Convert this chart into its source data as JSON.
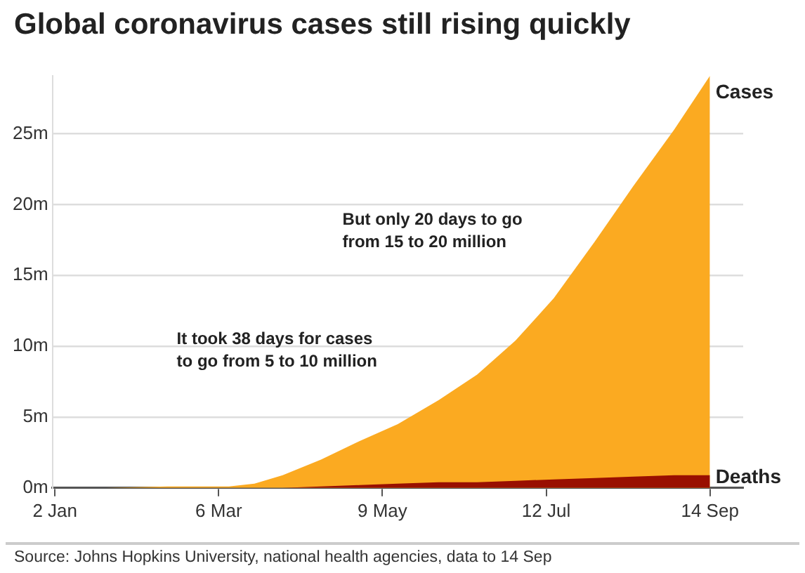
{
  "chart_data": {
    "type": "area",
    "title": "Global coronavirus cases still rising quickly",
    "x": [
      "--01-22",
      "--02-15",
      "--03-01",
      "--03-10",
      "--03-20",
      "--03-31",
      "--04-15",
      "--04-30",
      "--05-15",
      "--05-31",
      "--06-15",
      "--06-30",
      "--07-15",
      "--07-31",
      "--08-15",
      "--08-31",
      "--09-14"
    ],
    "series": [
      {
        "name": "Cases",
        "color": "#fbaa21",
        "values": [
          0,
          0.1,
          0.1,
          0.1,
          0.3,
          0.9,
          2.0,
          3.3,
          4.5,
          6.2,
          8.0,
          10.4,
          13.4,
          17.4,
          21.3,
          25.3,
          29.1
        ]
      },
      {
        "name": "Deaths",
        "color": "#990f00",
        "values": [
          0,
          0,
          0,
          0,
          0,
          0,
          0.1,
          0.2,
          0.3,
          0.4,
          0.4,
          0.5,
          0.6,
          0.7,
          0.8,
          0.9,
          0.9
        ]
      }
    ],
    "xlim": [
      "--01-01",
      "--09-27"
    ],
    "xticks": [
      {
        "value": "--01-02",
        "label": "2 Jan"
      },
      {
        "value": "--03-06",
        "label": "6 Mar"
      },
      {
        "value": "--05-09",
        "label": "9 May"
      },
      {
        "value": "--07-12",
        "label": "12 Jul"
      },
      {
        "value": "--09-14",
        "label": "14 Sep"
      }
    ],
    "ylim": [
      0,
      29.1
    ],
    "yticks": [
      {
        "value": 0,
        "label": "0m"
      },
      {
        "value": 5,
        "label": "5m"
      },
      {
        "value": 10,
        "label": "10m"
      },
      {
        "value": 15,
        "label": "15m"
      },
      {
        "value": 20,
        "label": "20m"
      },
      {
        "value": 25,
        "label": "25m"
      }
    ],
    "grid": "y",
    "legend": false,
    "annotations": [
      "It took 38 days for cases\nto go from 5 to 10 million",
      "But only 20 days to go\nfrom 15 to 20 million",
      "Source: Johns Hopkins University, national health agencies, data to 14 Sep"
    ]
  }
}
